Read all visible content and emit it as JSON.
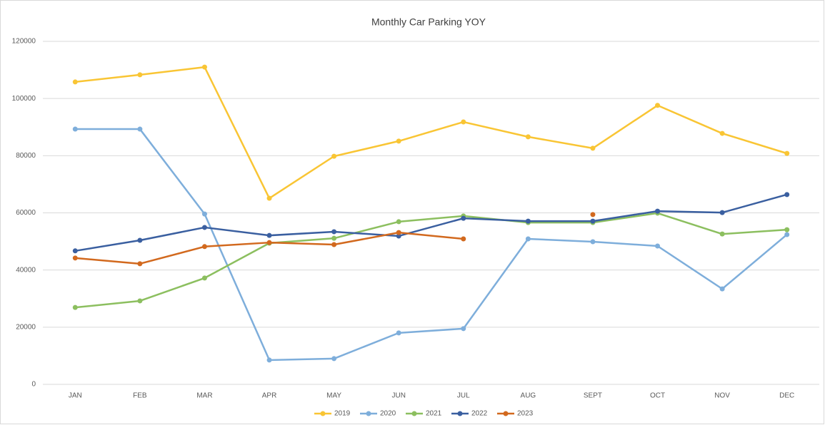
{
  "chart_data": {
    "type": "line",
    "title": "Monthly Car Parking YOY",
    "categories": [
      "JAN",
      "FEB",
      "MAR",
      "APR",
      "MAY",
      "JUN",
      "JUL",
      "AUG",
      "SEPT",
      "OCT",
      "NOV",
      "DEC"
    ],
    "series": [
      {
        "name": "2019",
        "color": "#f9c534",
        "values": [
          105800,
          108300,
          111000,
          65100,
          79800,
          85100,
          91800,
          86600,
          82600,
          97600,
          87800,
          80800
        ]
      },
      {
        "name": "2020",
        "color": "#7eaedb",
        "values": [
          89300,
          89300,
          59600,
          8500,
          9000,
          18000,
          19500,
          50900,
          49900,
          48400,
          33400,
          52400
        ]
      },
      {
        "name": "2021",
        "color": "#8cbf5f",
        "values": [
          26900,
          29200,
          37200,
          49400,
          51100,
          56900,
          58900,
          56600,
          56600,
          59900,
          52600,
          54100
        ]
      },
      {
        "name": "2022",
        "color": "#3a5fa0",
        "values": [
          46700,
          50400,
          54900,
          52100,
          53400,
          51900,
          58100,
          57100,
          57100,
          60600,
          60100,
          66400
        ]
      },
      {
        "name": "2023",
        "color": "#d2691e",
        "values": [
          44200,
          42200,
          48200,
          49600,
          48900,
          53100,
          50900,
          null,
          59400,
          null,
          null,
          null
        ]
      }
    ],
    "ylim": [
      0,
      120000
    ],
    "yticks": [
      0,
      20000,
      40000,
      60000,
      80000,
      100000,
      120000
    ],
    "grid": true,
    "legend": "bottom"
  }
}
